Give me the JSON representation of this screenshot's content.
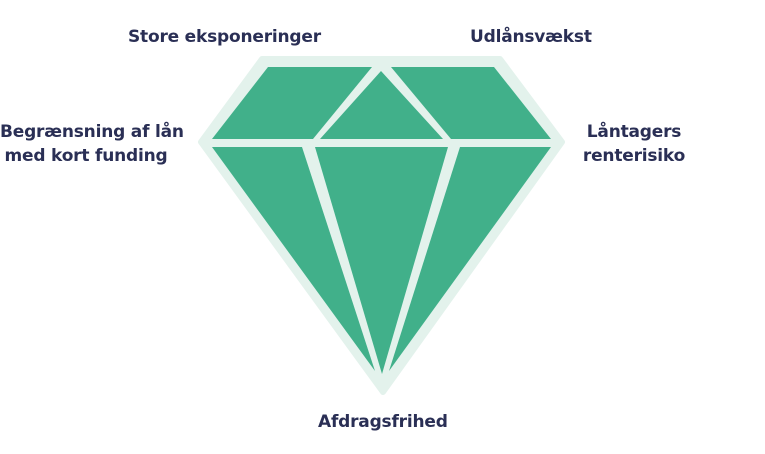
{
  "diagram": {
    "colors": {
      "facet": "#41b08a",
      "outline": "#e3f2ec",
      "text": "#2a2f55"
    },
    "labels": {
      "top_left": "Store eksponeringer",
      "top_right": "Udlånsvækst",
      "left_line1": "Begrænsning af lån",
      "left_line2": "med kort funding",
      "right_line1": "Låntagers",
      "right_line2": "renterisiko",
      "bottom": "Afdragsfrihed"
    }
  }
}
